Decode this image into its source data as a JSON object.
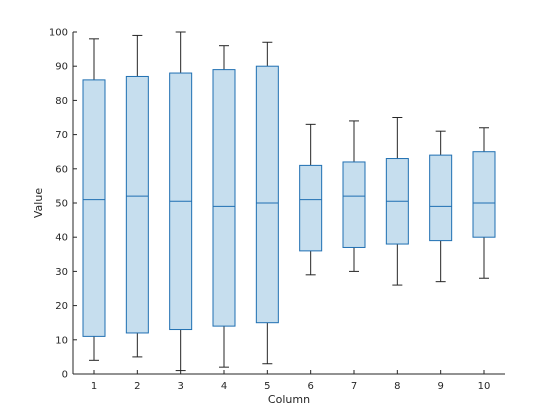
{
  "chart_data": {
    "type": "boxplot",
    "xlabel": "Column",
    "ylabel": "Value",
    "ylim": [
      0,
      100
    ],
    "yticks": [
      0,
      10,
      20,
      30,
      40,
      50,
      60,
      70,
      80,
      90,
      100
    ],
    "categories": [
      "1",
      "2",
      "3",
      "4",
      "5",
      "6",
      "7",
      "8",
      "9",
      "10"
    ],
    "boxes": [
      {
        "min": 4,
        "q1": 11,
        "median": 51,
        "q3": 86,
        "max": 98
      },
      {
        "min": 5,
        "q1": 12,
        "median": 52,
        "q3": 87,
        "max": 99
      },
      {
        "min": 1,
        "q1": 13,
        "median": 50.5,
        "q3": 88,
        "max": 100
      },
      {
        "min": 2,
        "q1": 14,
        "median": 49,
        "q3": 89,
        "max": 96
      },
      {
        "min": 3,
        "q1": 15,
        "median": 50,
        "q3": 90,
        "max": 97
      },
      {
        "min": 29,
        "q1": 36,
        "median": 51,
        "q3": 61,
        "max": 73
      },
      {
        "min": 30,
        "q1": 37,
        "median": 52,
        "q3": 62,
        "max": 74
      },
      {
        "min": 26,
        "q1": 38,
        "median": 50.5,
        "q3": 63,
        "max": 75
      },
      {
        "min": 27,
        "q1": 39,
        "median": 49,
        "q3": 64,
        "max": 71
      },
      {
        "min": 28,
        "q1": 40,
        "median": 50,
        "q3": 65,
        "max": 72
      }
    ],
    "box_fill": "#c6deee",
    "box_edge": "#1f6fb2",
    "whisker_color": "#262626",
    "grid": false
  }
}
